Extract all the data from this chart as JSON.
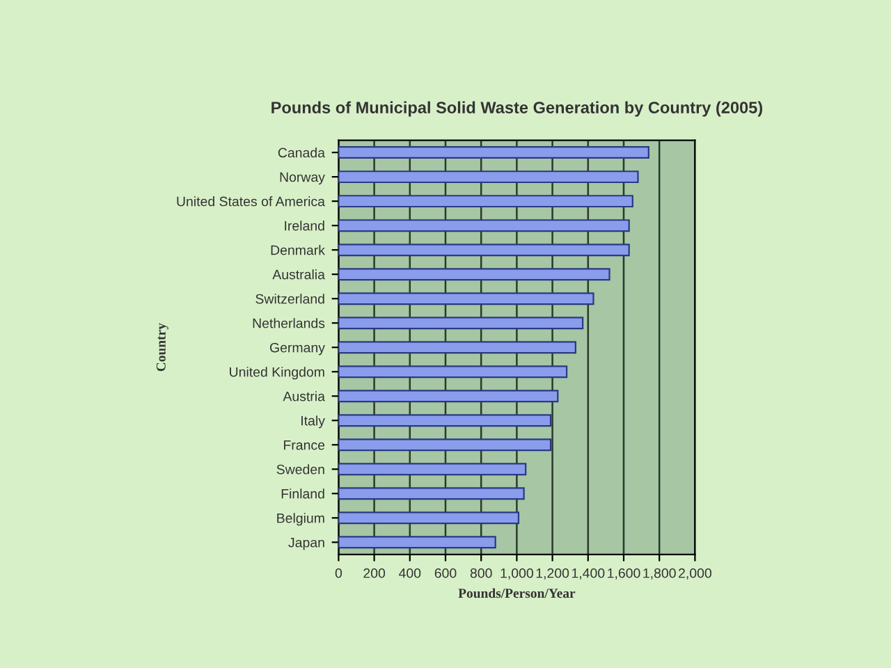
{
  "chart_data": {
    "type": "bar",
    "orientation": "horizontal",
    "title": "Pounds of Municipal Solid Waste Generation by Country (2005)",
    "xlabel": "Pounds/Person/Year",
    "ylabel": "Country",
    "categories": [
      "Canada",
      "Norway",
      "United States of America",
      "Ireland",
      "Denmark",
      "Australia",
      "Switzerland",
      "Netherlands",
      "Germany",
      "United Kingdom",
      "Austria",
      "Italy",
      "France",
      "Sweden",
      "Finland",
      "Belgium",
      "Japan"
    ],
    "values": [
      1740,
      1680,
      1650,
      1630,
      1630,
      1520,
      1430,
      1370,
      1330,
      1280,
      1230,
      1190,
      1190,
      1050,
      1040,
      1010,
      880
    ],
    "color": "#8a9cec",
    "xlim": [
      0,
      2000
    ],
    "xticks": [
      0,
      200,
      400,
      600,
      800,
      {
        "value": 1000,
        "label": "1,000"
      },
      {
        "value": 1200,
        "label": "1,200"
      },
      {
        "value": 1400,
        "label": "1,400"
      },
      {
        "value": 1600,
        "label": "1,600"
      },
      {
        "value": 1800,
        "label": "1,800"
      },
      {
        "value": 2000,
        "label": "2,000"
      }
    ],
    "grid": "x",
    "legend": false
  }
}
